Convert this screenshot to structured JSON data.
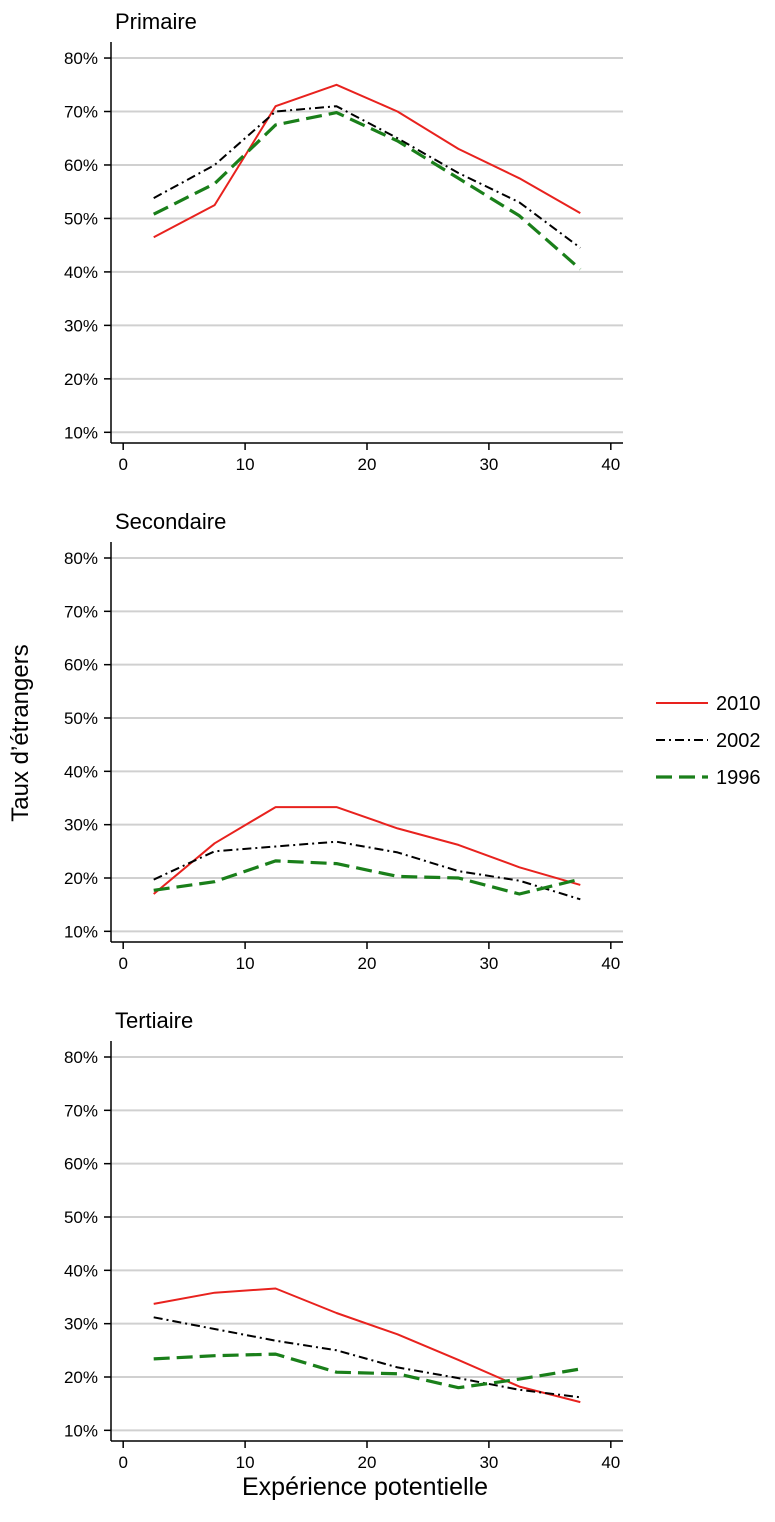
{
  "figure": {
    "ylabel": "Taux d’étrangers",
    "xlabel": "Expérience potentielle"
  },
  "legend": {
    "placement": "right",
    "items": [
      {
        "label": "2010",
        "color": "#e8221e",
        "dash": "solid"
      },
      {
        "label": "2002",
        "color": "#000000",
        "dash": "dashdot"
      },
      {
        "label": "1996",
        "color": "#1a7f1a",
        "dash": "longdash"
      }
    ]
  },
  "chart_data": [
    {
      "type": "line",
      "title": "Primaire",
      "x": [
        2.5,
        7.5,
        12.5,
        17.5,
        22.5,
        27.5,
        32.5,
        37.5
      ],
      "xlim": [
        -1,
        41
      ],
      "ylim": [
        0.08,
        0.83
      ],
      "xticks": [
        "0",
        "10",
        "20",
        "30",
        "40"
      ],
      "yticks": [
        "10%",
        "20%",
        "30%",
        "40%",
        "50%",
        "60%",
        "70%",
        "80%"
      ],
      "grid": true,
      "series": [
        {
          "name": "2010",
          "values": [
            0.465,
            0.525,
            0.71,
            0.75,
            0.7,
            0.63,
            0.575,
            0.51
          ]
        },
        {
          "name": "2002",
          "values": [
            0.538,
            0.6,
            0.7,
            0.71,
            0.65,
            0.585,
            0.53,
            0.445
          ]
        },
        {
          "name": "1996",
          "values": [
            0.508,
            0.565,
            0.675,
            0.698,
            0.645,
            0.575,
            0.505,
            0.405
          ]
        }
      ]
    },
    {
      "type": "line",
      "title": "Secondaire",
      "x": [
        2.5,
        7.5,
        12.5,
        17.5,
        22.5,
        27.5,
        32.5,
        37.5
      ],
      "xlim": [
        -1,
        41
      ],
      "ylim": [
        0.08,
        0.83
      ],
      "xticks": [
        "0",
        "10",
        "20",
        "30",
        "40"
      ],
      "yticks": [
        "10%",
        "20%",
        "30%",
        "40%",
        "50%",
        "60%",
        "70%",
        "80%"
      ],
      "grid": true,
      "series": [
        {
          "name": "2010",
          "values": [
            0.17,
            0.265,
            0.333,
            0.333,
            0.293,
            0.262,
            0.22,
            0.187
          ]
        },
        {
          "name": "2002",
          "values": [
            0.197,
            0.25,
            0.259,
            0.268,
            0.248,
            0.213,
            0.195,
            0.16
          ]
        },
        {
          "name": "1996",
          "values": [
            0.177,
            0.193,
            0.232,
            0.227,
            0.203,
            0.2,
            0.17,
            0.198
          ]
        }
      ]
    },
    {
      "type": "line",
      "title": "Tertiaire",
      "x": [
        2.5,
        7.5,
        12.5,
        17.5,
        22.5,
        27.5,
        32.5,
        37.5
      ],
      "xlim": [
        -1,
        41
      ],
      "ylim": [
        0.08,
        0.83
      ],
      "xticks": [
        "0",
        "10",
        "20",
        "30",
        "40"
      ],
      "yticks": [
        "10%",
        "20%",
        "30%",
        "40%",
        "50%",
        "60%",
        "70%",
        "80%"
      ],
      "grid": true,
      "series": [
        {
          "name": "2010",
          "values": [
            0.337,
            0.358,
            0.366,
            0.32,
            0.28,
            0.232,
            0.182,
            0.153
          ]
        },
        {
          "name": "2002",
          "values": [
            0.312,
            0.29,
            0.268,
            0.25,
            0.218,
            0.198,
            0.176,
            0.162
          ]
        },
        {
          "name": "1996",
          "values": [
            0.234,
            0.24,
            0.243,
            0.209,
            0.206,
            0.18,
            0.196,
            0.215
          ]
        }
      ]
    }
  ]
}
